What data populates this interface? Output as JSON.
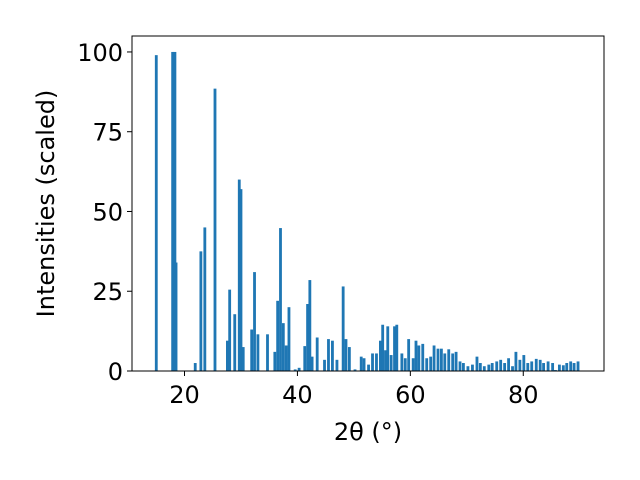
{
  "chart_data": {
    "type": "bar",
    "xlabel": "2θ (°)",
    "ylabel": "Intensities (scaled)",
    "xlim": [
      10.7,
      94.3
    ],
    "ylim": [
      0,
      105
    ],
    "xticks": [
      20,
      40,
      60,
      80
    ],
    "yticks": [
      0,
      25,
      50,
      75,
      100
    ],
    "grid": false,
    "bar_color": "#1f77b4",
    "bar_width_deg": 0.5,
    "bars": [
      [
        15.0,
        99
      ],
      [
        17.9,
        100
      ],
      [
        18.3,
        100
      ],
      [
        18.5,
        34
      ],
      [
        21.9,
        2.5
      ],
      [
        22.9,
        37.5
      ],
      [
        23.6,
        45
      ],
      [
        25.4,
        88.5
      ],
      [
        27.6,
        9.5
      ],
      [
        28.0,
        25.5
      ],
      [
        28.9,
        17.8
      ],
      [
        29.7,
        60
      ],
      [
        30.0,
        57
      ],
      [
        30.4,
        7.5
      ],
      [
        31.9,
        13
      ],
      [
        32.4,
        31
      ],
      [
        33.0,
        11.5
      ],
      [
        34.7,
        11.5
      ],
      [
        36.0,
        6
      ],
      [
        36.5,
        22
      ],
      [
        37.0,
        44.8
      ],
      [
        37.5,
        15
      ],
      [
        38.0,
        8
      ],
      [
        38.5,
        20
      ],
      [
        39.6,
        0.5
      ],
      [
        40.3,
        1
      ],
      [
        41.3,
        7.8
      ],
      [
        41.8,
        21
      ],
      [
        42.2,
        28.5
      ],
      [
        42.6,
        4.5
      ],
      [
        43.5,
        10.5
      ],
      [
        44.8,
        3.5
      ],
      [
        45.5,
        10
      ],
      [
        46.2,
        9.5
      ],
      [
        47.0,
        3.5
      ],
      [
        48.1,
        26.5
      ],
      [
        48.6,
        10
      ],
      [
        49.2,
        7.5
      ],
      [
        50.2,
        0.5
      ],
      [
        51.3,
        4.5
      ],
      [
        51.8,
        4
      ],
      [
        52.6,
        2
      ],
      [
        53.3,
        5.5
      ],
      [
        54.0,
        5.5
      ],
      [
        54.7,
        9.5
      ],
      [
        55.1,
        14.5
      ],
      [
        55.6,
        6.5
      ],
      [
        56.0,
        14
      ],
      [
        56.6,
        5
      ],
      [
        57.2,
        14
      ],
      [
        57.6,
        14.5
      ],
      [
        58.5,
        5.5
      ],
      [
        59.1,
        4
      ],
      [
        59.7,
        10
      ],
      [
        60.5,
        4
      ],
      [
        61.0,
        9.5
      ],
      [
        61.5,
        8
      ],
      [
        62.2,
        8.5
      ],
      [
        62.9,
        4
      ],
      [
        63.6,
        4.5
      ],
      [
        64.2,
        8
      ],
      [
        64.9,
        7
      ],
      [
        65.5,
        7
      ],
      [
        66.1,
        5.5
      ],
      [
        66.8,
        6.8
      ],
      [
        67.5,
        5.5
      ],
      [
        68.1,
        6
      ],
      [
        68.8,
        3
      ],
      [
        69.4,
        2.5
      ],
      [
        70.2,
        1.5
      ],
      [
        71.0,
        2
      ],
      [
        71.8,
        4.5
      ],
      [
        72.4,
        2.5
      ],
      [
        73.1,
        1.5
      ],
      [
        73.9,
        2
      ],
      [
        74.5,
        2.5
      ],
      [
        75.3,
        3
      ],
      [
        76.0,
        3.5
      ],
      [
        76.7,
        2.5
      ],
      [
        77.4,
        4
      ],
      [
        78.1,
        1.5
      ],
      [
        78.7,
        6
      ],
      [
        79.4,
        3.5
      ],
      [
        80.1,
        5
      ],
      [
        80.8,
        2.5
      ],
      [
        81.5,
        3
      ],
      [
        82.3,
        3.8
      ],
      [
        83.0,
        3.5
      ],
      [
        83.6,
        2.5
      ],
      [
        84.4,
        3
      ],
      [
        85.2,
        2.5
      ],
      [
        85.7,
        0.3
      ],
      [
        86.4,
        2
      ],
      [
        87.1,
        1.8
      ],
      [
        87.7,
        2.5
      ],
      [
        88.4,
        3
      ],
      [
        89.0,
        2.5
      ],
      [
        89.7,
        3
      ]
    ]
  }
}
